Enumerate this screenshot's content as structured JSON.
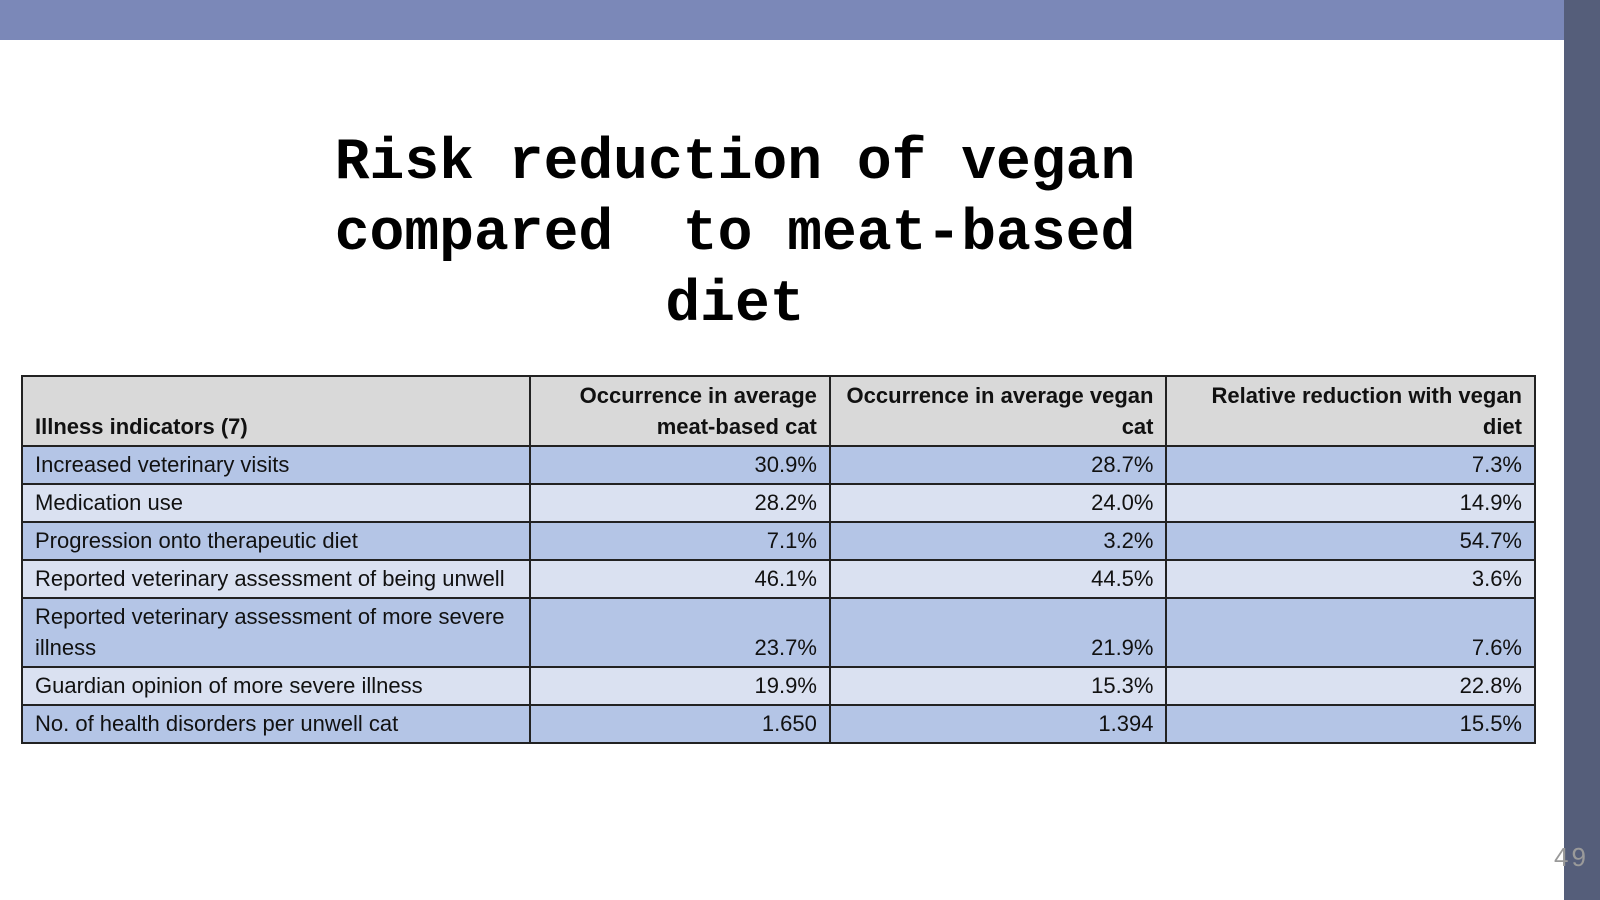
{
  "title": "Risk reduction of vegan\ncompared  to meat-based\ndiet",
  "page_number": "49",
  "table": {
    "headers": [
      "Illness indicators (7)",
      "Occurrence in average meat-based cat",
      "Occurrence in average vegan cat",
      "Relative reduction with vegan diet"
    ],
    "rows": [
      [
        "Increased veterinary visits",
        "30.9%",
        "28.7%",
        "7.3%"
      ],
      [
        "Medication use",
        "28.2%",
        "24.0%",
        "14.9%"
      ],
      [
        "Progression onto therapeutic diet",
        "7.1%",
        "3.2%",
        "54.7%"
      ],
      [
        "Reported veterinary assessment of being unwell",
        "46.1%",
        "44.5%",
        "3.6%"
      ],
      [
        "Reported veterinary assessment of more severe illness",
        "23.7%",
        "21.9%",
        "7.6%"
      ],
      [
        "Guardian opinion of more severe illness",
        "19.9%",
        "15.3%",
        "22.8%"
      ],
      [
        "No. of health disorders per unwell cat",
        "1.650",
        "1.394",
        "15.5%"
      ]
    ]
  },
  "colors": {
    "top_bar": "#7B88B8",
    "side_bar": "#555E7A",
    "header_bg": "#D9D9D9",
    "row_dark": "#B4C5E6",
    "row_light": "#DAE1F1"
  }
}
